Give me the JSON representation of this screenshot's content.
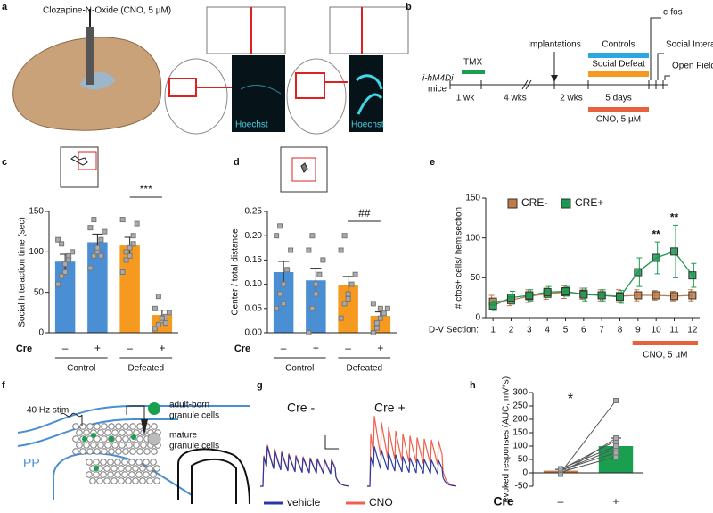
{
  "panel_labels": [
    "a",
    "b",
    "c",
    "d",
    "e",
    "f",
    "g",
    "h"
  ],
  "panel_a": {
    "drug": "Clozapine-N-Oxide (CNO, 5 µM)",
    "stain_1": "Hoechst",
    "stain_2": "Hoechst"
  },
  "panel_b": {
    "mouse_1": "i-hM4Di",
    "mouse_2": "mice",
    "tmx": "TMX",
    "wk1": "1 wk",
    "wk4": "4 wks",
    "implant": "Implantations",
    "wk2": "2 wks",
    "controls": "Controls",
    "defeat": "Social Defeat",
    "days": "5 days",
    "cno": "CNO, 5 µM",
    "cfos": "c-fos",
    "social": "Social Interaction",
    "open": "Open Field"
  },
  "panel_f": {
    "stim": "40 Hz stim",
    "pp": "PP",
    "adult_1": "adult-born",
    "adult_2": "granule cells",
    "mature_1": "mature",
    "mature_2": "granule cells"
  },
  "panel_g": {
    "minus": "Cre -",
    "plus": "Cre +",
    "vehicle": "vehicle",
    "cno": "CNO"
  },
  "chart_data": [
    {
      "type": "bar",
      "y_label": "Social Interaction time (sec)",
      "x_label": "Cre",
      "categories": [
        "–",
        "+",
        "–",
        "+"
      ],
      "groups": [
        "Control",
        "Defeated"
      ],
      "values": [
        88,
        112,
        108,
        22
      ],
      "errors": [
        9,
        10,
        10,
        6
      ],
      "colors": [
        "#4a8fd4",
        "#4a8fd4",
        "#f59a1f",
        "#f59a1f"
      ],
      "points": [
        [
          60,
          70,
          85,
          95,
          100,
          115,
          110,
          75,
          90
        ],
        [
          80,
          95,
          100,
          115,
          125,
          130,
          140,
          105,
          95
        ],
        [
          75,
          90,
          105,
          120,
          135,
          140,
          100,
          95,
          110
        ],
        [
          5,
          10,
          15,
          20,
          25,
          30,
          45,
          18,
          12
        ]
      ],
      "ylim": [
        0,
        150
      ],
      "yticks": [
        0,
        50,
        100,
        150
      ],
      "significance": "***"
    },
    {
      "type": "bar",
      "y_label": "Center / total distance",
      "x_label": "Cre",
      "categories": [
        "–",
        "+",
        "–",
        "+"
      ],
      "groups": [
        "Control",
        "Defeated"
      ],
      "values": [
        0.125,
        0.108,
        0.098,
        0.035
      ],
      "errors": [
        0.022,
        0.025,
        0.018,
        0.008
      ],
      "colors": [
        "#4a8fd4",
        "#4a8fd4",
        "#f59a1f",
        "#f59a1f"
      ],
      "points": [
        [
          0.05,
          0.08,
          0.1,
          0.13,
          0.17,
          0.2,
          0.22,
          0.06
        ],
        [
          0.0,
          0.05,
          0.08,
          0.12,
          0.15,
          0.17,
          0.2,
          0.1
        ],
        [
          0.03,
          0.06,
          0.08,
          0.1,
          0.12,
          0.17,
          0.2,
          0.07
        ],
        [
          0.0,
          0.01,
          0.03,
          0.04,
          0.05,
          0.06,
          0.02,
          0.05
        ]
      ],
      "ylim": [
        0,
        0.25
      ],
      "yticks": [
        {
          "value": 0,
          "label": "0.00"
        },
        {
          "value": 0.05,
          "label": "0.05"
        },
        {
          "value": 0.1,
          "label": "0.10"
        },
        {
          "value": 0.15,
          "label": "0.15"
        },
        {
          "value": 0.2,
          "label": "0.20"
        },
        {
          "value": 0.25,
          "label": "0.25"
        }
      ],
      "significance": "##"
    },
    {
      "type": "line",
      "y_label": "# cfos+ cells/ hemisection",
      "x_label": "D-V Section:",
      "x": [
        1,
        2,
        3,
        4,
        5,
        6,
        7,
        8,
        9,
        10,
        11,
        12
      ],
      "series": [
        {
          "name": "CRE-",
          "color": "#c07a45",
          "values": [
            20,
            22,
            27,
            30,
            32,
            30,
            28,
            27,
            28,
            28,
            27,
            28
          ],
          "errors": [
            8,
            7,
            8,
            7,
            8,
            7,
            7,
            8,
            7,
            6,
            6,
            7
          ]
        },
        {
          "name": "CRE+",
          "color": "#1a9a50",
          "values": [
            15,
            25,
            28,
            32,
            33,
            29,
            28,
            26,
            57,
            75,
            83,
            53
          ],
          "errors": [
            6,
            8,
            7,
            7,
            6,
            8,
            7,
            8,
            18,
            20,
            33,
            15
          ]
        }
      ],
      "xlim": [
        0.6,
        12.4
      ],
      "xticks": [
        1,
        2,
        3,
        4,
        5,
        6,
        7,
        8,
        9,
        10,
        11,
        12
      ],
      "ylim": [
        0,
        150
      ],
      "yticks": [
        0,
        50,
        100,
        150
      ],
      "annotations": [
        {
          "x": 10,
          "text": "**"
        },
        {
          "x": 11,
          "text": "**"
        }
      ],
      "treatment": "CNO, 5 µM"
    },
    {
      "type": "bar",
      "y_label": "evoked responses  (AUC, mV*s)",
      "x_label": "Cre",
      "categories": [
        "–",
        "+"
      ],
      "values": [
        8,
        100
      ],
      "errors": [
        5,
        30
      ],
      "colors": [
        "#c07a45",
        "#18a050"
      ],
      "points": [
        [
          0,
          3,
          8,
          12,
          -5,
          10,
          15
        ],
        [
          270,
          60,
          90,
          120,
          130,
          75,
          100
        ]
      ],
      "paired": true,
      "ylim": [
        -50,
        300
      ],
      "yticks": [
        -50,
        0,
        50,
        100,
        150,
        200,
        250,
        300
      ],
      "significance": "*"
    }
  ]
}
